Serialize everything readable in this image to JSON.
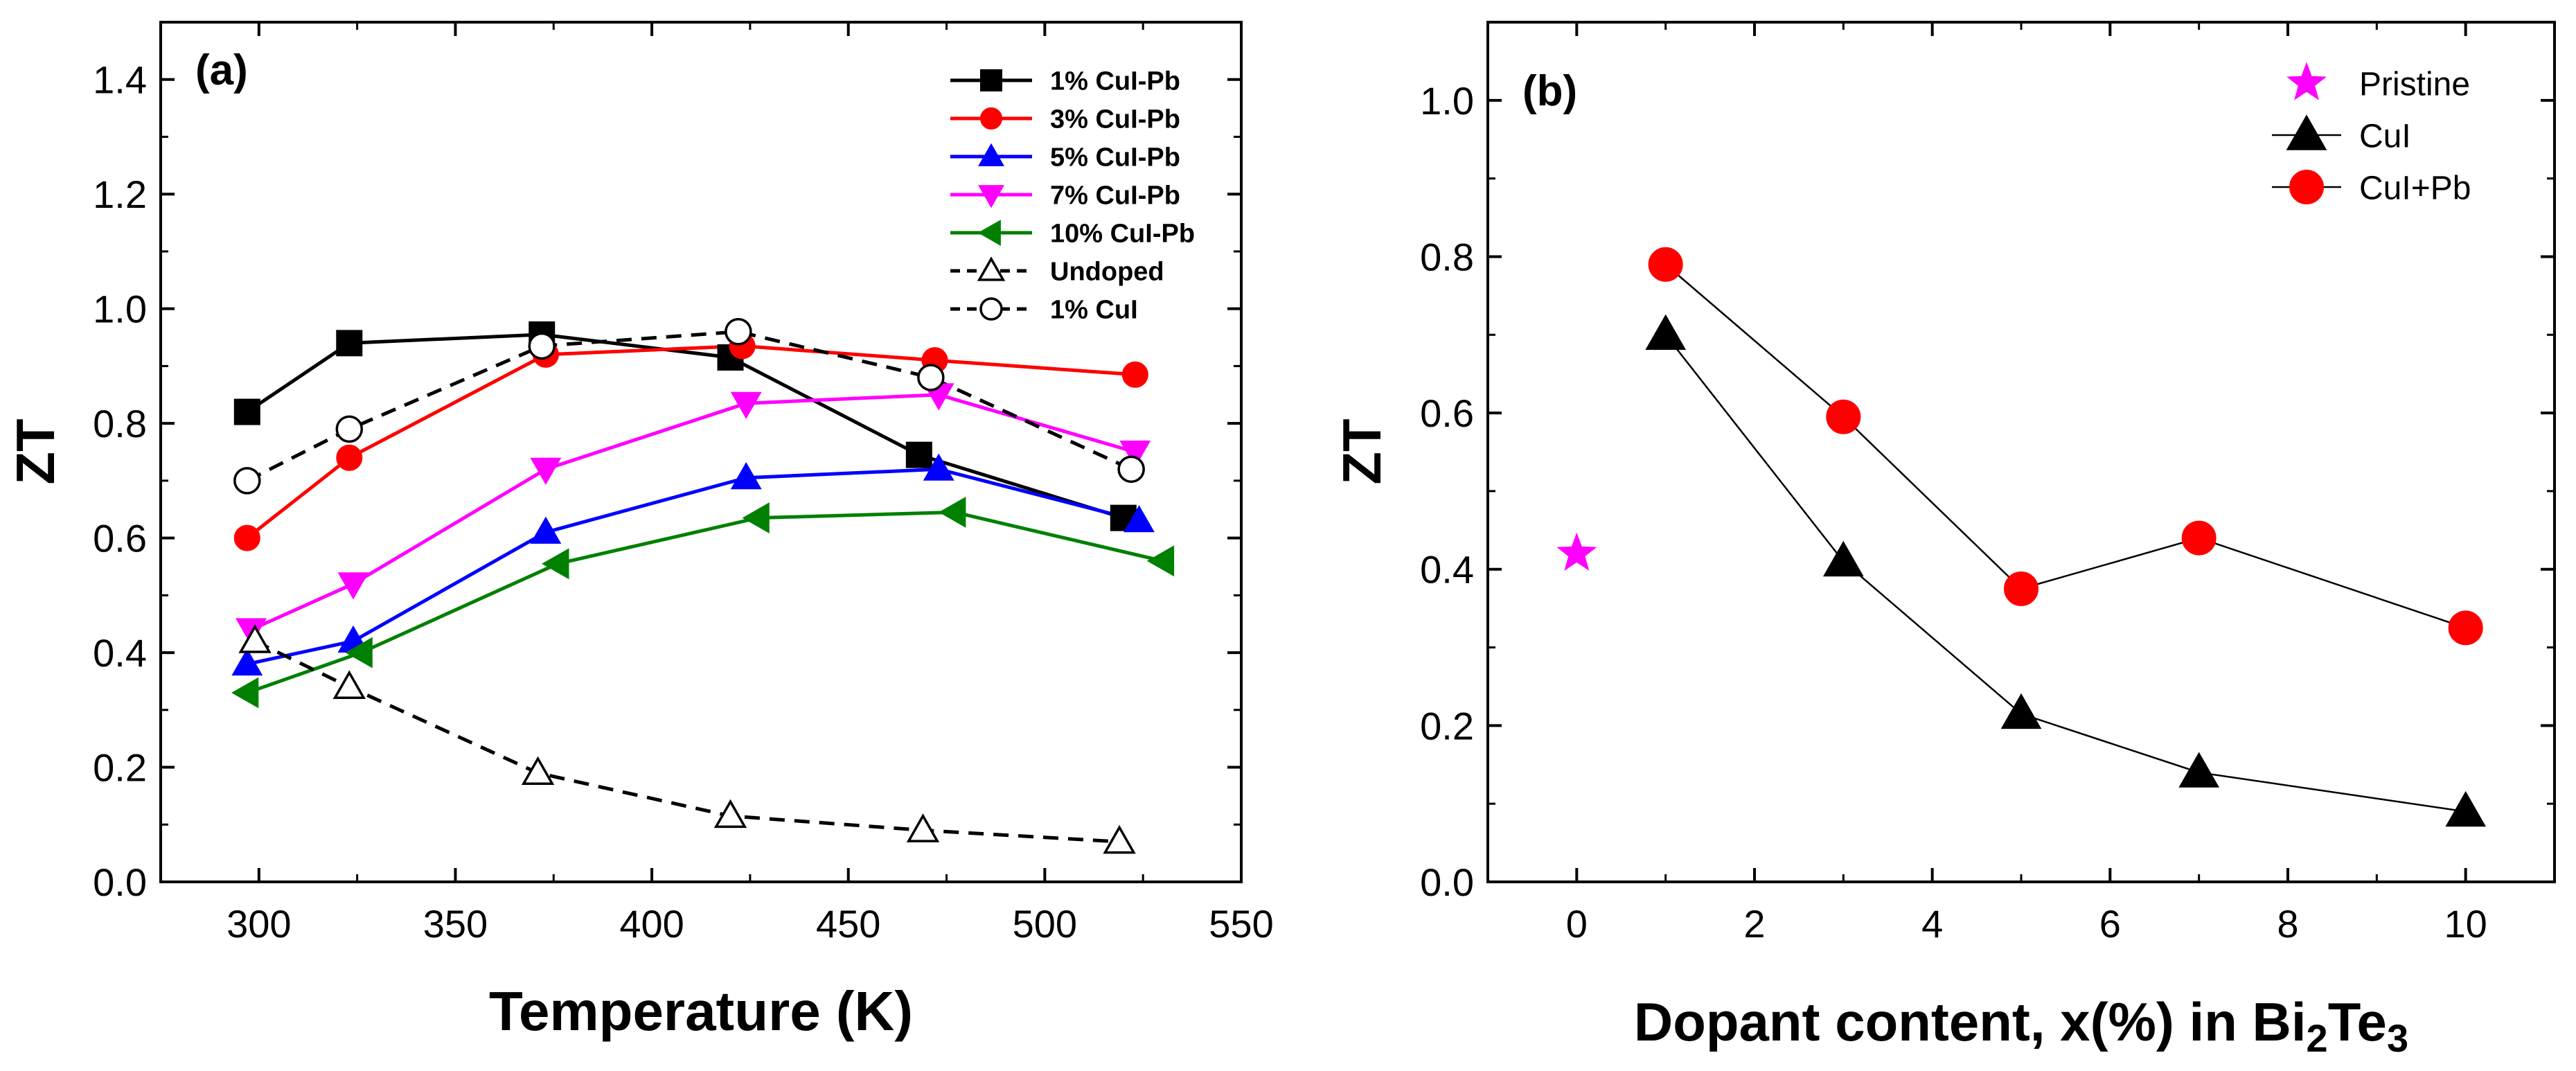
{
  "chart_data": [
    {
      "type": "line",
      "panel_label": "(a)",
      "xlabel": "Temperature (K)",
      "ylabel": "ZT",
      "xlim": [
        275,
        550
      ],
      "ylim": [
        0.0,
        1.5
      ],
      "xticks": [
        "300",
        "350",
        "400",
        "450",
        "500",
        "550"
      ],
      "yticks": [
        "0.0",
        "0.2",
        "0.4",
        "0.6",
        "0.8",
        "1.0",
        "1.2",
        "1.4"
      ],
      "legend_position": "top-right",
      "series": [
        {
          "name": "1% CuI-Pb",
          "color": "#000000",
          "marker": "square",
          "filled": true,
          "dashed": false,
          "points": [
            [
              297,
              0.82
            ],
            [
              323,
              0.94
            ],
            [
              372,
              0.955
            ],
            [
              420,
              0.915
            ],
            [
              468,
              0.745
            ],
            [
              520,
              0.635
            ]
          ]
        },
        {
          "name": "3% CuI-Pb",
          "color": "#ff0000",
          "marker": "circle",
          "filled": true,
          "dashed": false,
          "points": [
            [
              297,
              0.6
            ],
            [
              323,
              0.74
            ],
            [
              373,
              0.92
            ],
            [
              423,
              0.935
            ],
            [
              472,
              0.91
            ],
            [
              523,
              0.885
            ]
          ]
        },
        {
          "name": "5% CuI-Pb",
          "color": "#0000ff",
          "marker": "triangle-up",
          "filled": true,
          "dashed": false,
          "points": [
            [
              297,
              0.38
            ],
            [
              324,
              0.42
            ],
            [
              373,
              0.61
            ],
            [
              424,
              0.705
            ],
            [
              473,
              0.72
            ],
            [
              524,
              0.63
            ]
          ]
        },
        {
          "name": "7% CuI-Pb",
          "color": "#ff00ff",
          "marker": "triangle-down",
          "filled": true,
          "dashed": false,
          "points": [
            [
              298,
              0.44
            ],
            [
              324,
              0.52
            ],
            [
              373,
              0.72
            ],
            [
              424,
              0.835
            ],
            [
              473,
              0.85
            ],
            [
              523,
              0.75
            ]
          ]
        },
        {
          "name": "10% CuI-Pb",
          "color": "#008000",
          "marker": "triangle-left",
          "filled": true,
          "dashed": false,
          "points": [
            [
              297,
              0.33
            ],
            [
              326,
              0.4
            ],
            [
              376,
              0.555
            ],
            [
              427,
              0.635
            ],
            [
              477,
              0.645
            ],
            [
              530,
              0.56
            ]
          ]
        },
        {
          "name": "Undoped",
          "color": "#000000",
          "marker": "triangle-up",
          "filled": false,
          "dashed": true,
          "points": [
            [
              299,
              0.42
            ],
            [
              323,
              0.34
            ],
            [
              371,
              0.19
            ],
            [
              420,
              0.115
            ],
            [
              469,
              0.09
            ],
            [
              519,
              0.07
            ]
          ]
        },
        {
          "name": "1% CuI",
          "color": "#000000",
          "marker": "circle",
          "filled": false,
          "dashed": true,
          "points": [
            [
              297,
              0.7
            ],
            [
              323,
              0.79
            ],
            [
              372,
              0.935
            ],
            [
              422,
              0.96
            ],
            [
              471,
              0.88
            ],
            [
              522,
              0.72
            ]
          ]
        }
      ]
    },
    {
      "type": "line",
      "panel_label": "(b)",
      "xlabel_parts": [
        "Dopant content, x(%) in Bi",
        "2",
        "Te",
        "3"
      ],
      "ylabel": "ZT",
      "xlim": [
        -1,
        11
      ],
      "ylim": [
        0.0,
        1.1
      ],
      "xticks": [
        "0",
        "2",
        "4",
        "6",
        "8",
        "10"
      ],
      "yticks": [
        "0.0",
        "0.2",
        "0.4",
        "0.6",
        "0.8",
        "1.0"
      ],
      "legend_position": "top-right",
      "series": [
        {
          "name": "Pristine",
          "color": "#ff00ff",
          "marker": "star",
          "filled": true,
          "dashed": false,
          "points": [
            [
              0,
              0.42
            ]
          ]
        },
        {
          "name": "CuI",
          "color": "#000000",
          "marker": "triangle-up",
          "filled": true,
          "dashed": false,
          "points": [
            [
              1,
              0.7
            ],
            [
              3,
              0.41
            ],
            [
              5,
              0.215
            ],
            [
              7,
              0.14
            ],
            [
              10,
              0.09
            ]
          ]
        },
        {
          "name": "CuI+Pb",
          "color": "#ff0000",
          "marker": "circle",
          "filled": true,
          "dashed": false,
          "points": [
            [
              1,
              0.79
            ],
            [
              3,
              0.595
            ],
            [
              5,
              0.375
            ],
            [
              7,
              0.44
            ],
            [
              10,
              0.325
            ]
          ]
        }
      ]
    }
  ]
}
